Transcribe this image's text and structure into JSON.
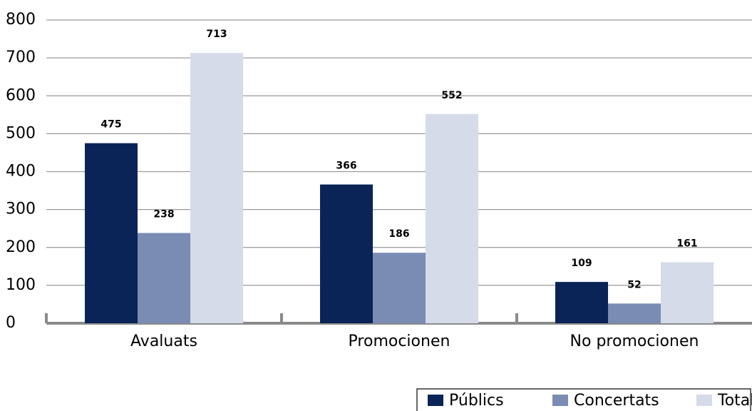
{
  "chart_data": {
    "type": "bar",
    "categories": [
      "Avaluats",
      "Promocionen",
      "No promocionen"
    ],
    "series": [
      {
        "name": "Públics",
        "color": "#0b2458",
        "values": [
          475,
          366,
          109
        ]
      },
      {
        "name": "Concertats",
        "color": "#7a8cb4",
        "values": [
          238,
          186,
          52
        ]
      },
      {
        "name": "Total",
        "color": "#d5dbe8",
        "values": [
          713,
          552,
          161
        ]
      }
    ],
    "ylim": [
      0,
      800
    ],
    "yticks": [
      0,
      100,
      200,
      300,
      400,
      500,
      600,
      700,
      800
    ],
    "grid": true,
    "legend": "bottom-right"
  }
}
